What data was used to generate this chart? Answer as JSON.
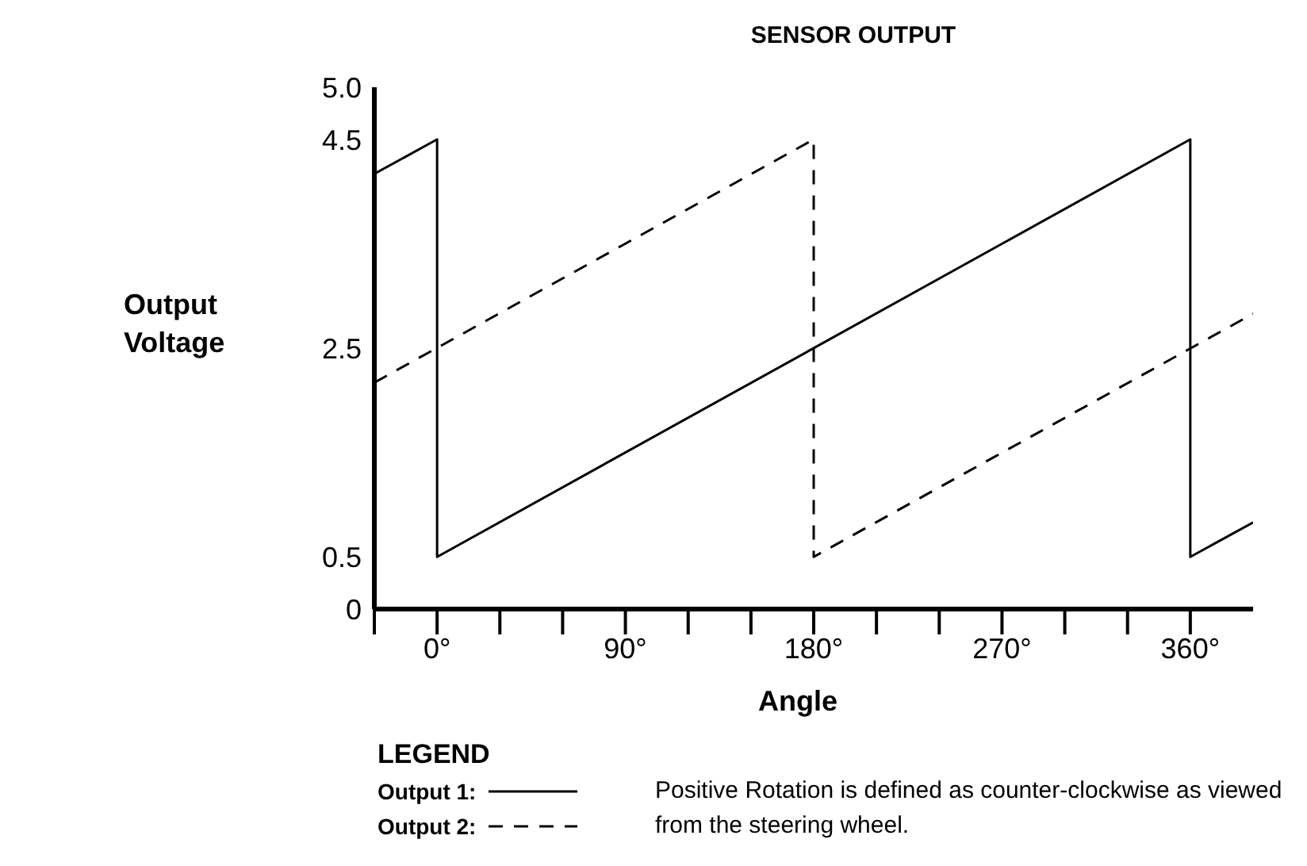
{
  "chart_data": {
    "type": "line",
    "title": "SENSOR OUTPUT",
    "xlabel": "Angle",
    "ylabel": "Output Voltage",
    "legend_title": "LEGEND",
    "legend": "bottom",
    "annotations": [
      "Positive Rotation is defined as counter-clockwise as viewed from the steering wheel."
    ],
    "series": [
      {
        "name": "Output 1:",
        "color": "#000000",
        "line_style": "solid",
        "x": [
          -30,
          0,
          0,
          360,
          360,
          390
        ],
        "values": [
          4.17,
          4.5,
          0.5,
          4.5,
          0.5,
          0.83
        ]
      },
      {
        "name": "Output 2:",
        "color": "#000000",
        "line_style": "dashed",
        "x": [
          -30,
          180,
          180,
          390
        ],
        "values": [
          2.17,
          4.5,
          0.5,
          2.83
        ]
      }
    ],
    "xlim": [
      -30,
      390
    ],
    "xticks": [
      {
        "value": -30,
        "label": null
      },
      {
        "value": 0,
        "label": "0°"
      },
      {
        "value": 30,
        "label": null
      },
      {
        "value": 60,
        "label": null
      },
      {
        "value": 90,
        "label": "90°"
      },
      {
        "value": 120,
        "label": null
      },
      {
        "value": 150,
        "label": null
      },
      {
        "value": 180,
        "label": "180°"
      },
      {
        "value": 210,
        "label": null
      },
      {
        "value": 240,
        "label": null
      },
      {
        "value": 270,
        "label": "270°"
      },
      {
        "value": 300,
        "label": null
      },
      {
        "value": 330,
        "label": null
      },
      {
        "value": 360,
        "label": "360°"
      }
    ],
    "ylim": [
      0,
      5
    ],
    "yticks": [
      0,
      0.5,
      2.5,
      4.5,
      {
        "value": 5,
        "label": "5.0"
      }
    ],
    "grid": false,
    "marker": "none"
  }
}
